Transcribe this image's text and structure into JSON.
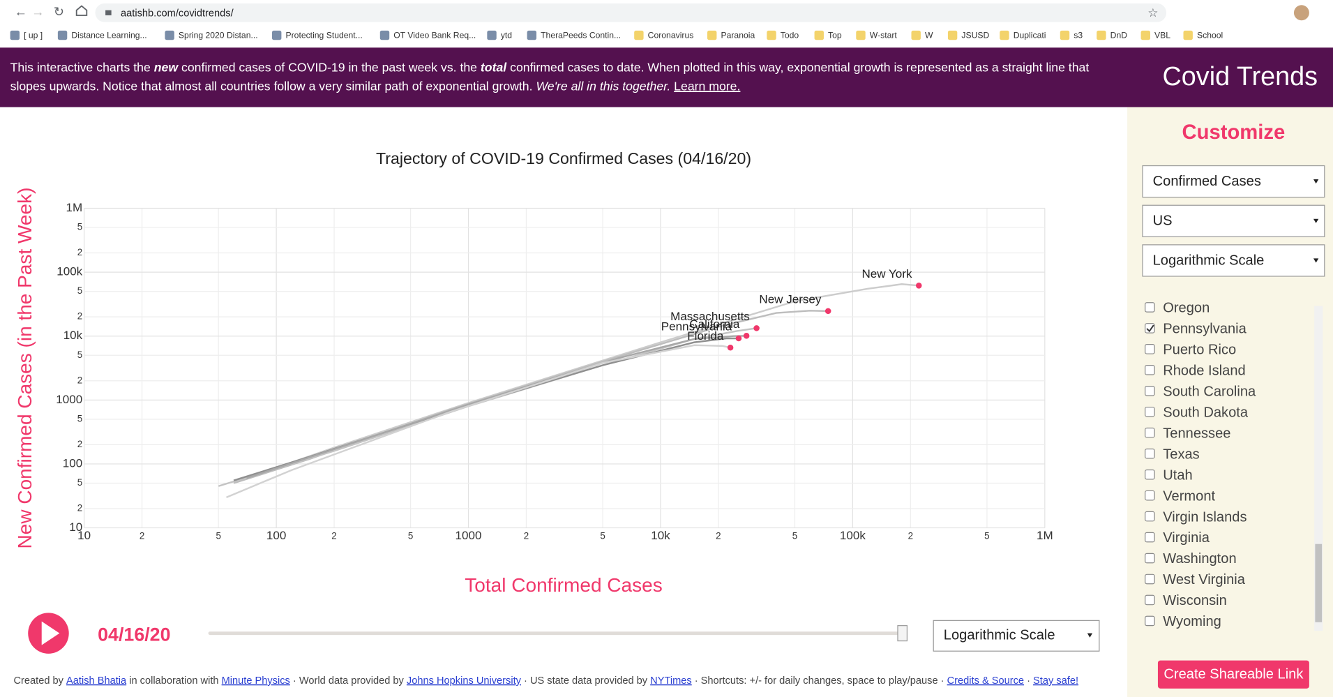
{
  "browser": {
    "url": "aatishb.com/covidtrends/",
    "bookmarks": [
      "[ up ]",
      "Distance Learning...",
      "Spring 2020 Distan...",
      "Protecting Student...",
      "OT Video Bank Req...",
      "ytd",
      "TheraPeeds Contin...",
      "Coronavirus",
      "Paranoia",
      "Todo",
      "Top",
      "W-start",
      "W",
      "JSUSD",
      "Duplicati",
      "s3",
      "DnD",
      "VBL",
      "School"
    ]
  },
  "banner": {
    "line1": [
      "This interactive charts the ",
      "new",
      " confirmed cases of COVID-19 in the past week vs. the ",
      "total",
      " confirmed cases to date. When plotted in this way, exponential growth is represented as a straight line that"
    ],
    "line2": [
      "slopes upwards. Notice that almost all countries follow a very similar path of exponential growth. ",
      "We're all in this together.",
      " ",
      "Learn more."
    ],
    "site_title": "Covid Trends"
  },
  "chart_data": {
    "type": "line",
    "title": "Trajectory of COVID-19 Confirmed Cases (04/16/20)",
    "x_label": "Total Confirmed Cases",
    "y_label": "New Confirmed Cases (in the Past Week)",
    "x_log": true,
    "y_log": true,
    "grid": true,
    "xlim": [
      10,
      1000000
    ],
    "ylim": [
      10,
      1000000
    ],
    "xticks": [
      10,
      {
        "value": 20,
        "label": "2"
      },
      {
        "value": 50,
        "label": "5"
      },
      100,
      {
        "value": 200,
        "label": "2"
      },
      {
        "value": 500,
        "label": "5"
      },
      1000,
      {
        "value": 2000,
        "label": "2"
      },
      {
        "value": 5000,
        "label": "5"
      },
      {
        "value": 10000,
        "label": "10k"
      },
      {
        "value": 20000,
        "label": "2"
      },
      {
        "value": 50000,
        "label": "5"
      },
      {
        "value": 100000,
        "label": "100k"
      },
      {
        "value": 200000,
        "label": "2"
      },
      {
        "value": 500000,
        "label": "5"
      },
      {
        "value": 1000000,
        "label": "1M"
      }
    ],
    "yticks": [
      10,
      {
        "value": 20,
        "label": "2"
      },
      {
        "value": 50,
        "label": "5"
      },
      100,
      {
        "value": 200,
        "label": "2"
      },
      {
        "value": 500,
        "label": "5"
      },
      1000,
      {
        "value": 2000,
        "label": "2"
      },
      {
        "value": 5000,
        "label": "5"
      },
      {
        "value": 10000,
        "label": "10k"
      },
      {
        "value": 20000,
        "label": "2"
      },
      {
        "value": 50000,
        "label": "5"
      },
      {
        "value": 100000,
        "label": "100k"
      },
      {
        "value": 200000,
        "label": "2"
      },
      {
        "value": 500000,
        "label": "5"
      },
      {
        "value": 1000000,
        "label": "1M"
      }
    ],
    "marker_color": "#f0386b",
    "series": [
      {
        "name": "New York",
        "color": "#cccccc",
        "x": [
          70,
          200,
          1000,
          10000,
          50000,
          120000,
          180000,
          221000
        ],
        "values": [
          60,
          180,
          900,
          8000,
          35000,
          55000,
          65000,
          61700
        ]
      },
      {
        "name": "New Jersey",
        "color": "#bdbdbd",
        "x": [
          60,
          150,
          800,
          5000,
          20000,
          40000,
          60000,
          74500
        ],
        "values": [
          50,
          120,
          700,
          4000,
          14000,
          23000,
          25000,
          24600
        ]
      },
      {
        "name": "Massachusetts",
        "color": "#c4c4c4",
        "x": [
          50,
          200,
          1000,
          5000,
          15000,
          25000,
          31600
        ],
        "values": [
          45,
          160,
          800,
          3500,
          9000,
          12000,
          13300
        ]
      },
      {
        "name": "Pennsylvania",
        "color": "#8f8f8f",
        "x": [
          60,
          150,
          900,
          5000,
          15000,
          22000,
          25500
        ],
        "values": [
          55,
          130,
          750,
          3500,
          8000,
          9200,
          9200
        ]
      },
      {
        "name": "California",
        "color": "#a8a8a8",
        "x": [
          70,
          200,
          1000,
          6000,
          15000,
          24000,
          28000
        ],
        "values": [
          60,
          170,
          850,
          4500,
          9000,
          10000,
          10100
        ]
      },
      {
        "name": "Florida",
        "color": "#d2d2d2",
        "x": [
          55,
          120,
          800,
          5000,
          15000,
          21000,
          23100
        ],
        "values": [
          30,
          80,
          650,
          3800,
          7200,
          7000,
          6600
        ]
      }
    ]
  },
  "controls": {
    "date": "04/16/20",
    "scale_select": "Logarithmic Scale"
  },
  "sidebar": {
    "heading": "Customize",
    "selects": [
      "Confirmed Cases",
      "US",
      "Logarithmic Scale"
    ],
    "states": [
      {
        "name": "Oregon",
        "checked": false
      },
      {
        "name": "Pennsylvania",
        "checked": true
      },
      {
        "name": "Puerto Rico",
        "checked": false
      },
      {
        "name": "Rhode Island",
        "checked": false
      },
      {
        "name": "South Carolina",
        "checked": false
      },
      {
        "name": "South Dakota",
        "checked": false
      },
      {
        "name": "Tennessee",
        "checked": false
      },
      {
        "name": "Texas",
        "checked": false
      },
      {
        "name": "Utah",
        "checked": false
      },
      {
        "name": "Vermont",
        "checked": false
      },
      {
        "name": "Virgin Islands",
        "checked": false
      },
      {
        "name": "Virginia",
        "checked": false
      },
      {
        "name": "Washington",
        "checked": false
      },
      {
        "name": "West Virginia",
        "checked": false
      },
      {
        "name": "Wisconsin",
        "checked": false
      },
      {
        "name": "Wyoming",
        "checked": false
      }
    ],
    "share_button": "Create Shareable Link"
  },
  "footer": [
    "Created by ",
    "Aatish Bhatia",
    " in collaboration with ",
    "Minute Physics",
    " · World data provided by ",
    "Johns Hopkins University",
    " · US state data provided by ",
    "NYTimes",
    " · Shortcuts: +/- for daily changes, space to play/pause · ",
    "Credits & Source",
    " · ",
    "Stay safe!"
  ]
}
